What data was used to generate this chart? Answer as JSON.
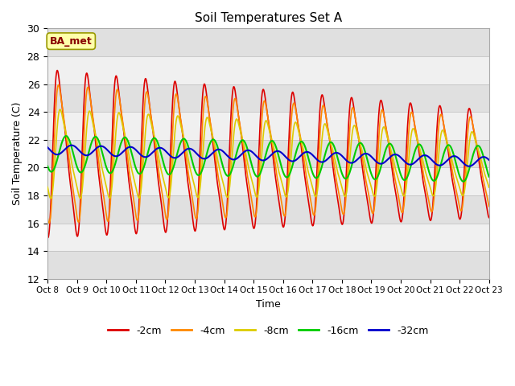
{
  "title": "Soil Temperatures Set A",
  "xlabel": "Time",
  "ylabel": "Soil Temperature (C)",
  "ylim": [
    12,
    30
  ],
  "annotation": "BA_met",
  "line_colors": {
    "-2cm": "#dd0000",
    "-4cm": "#ff8800",
    "-8cm": "#ddcc00",
    "-16cm": "#00cc00",
    "-32cm": "#0000cc"
  },
  "legend_labels": [
    "-2cm",
    "-4cm",
    "-8cm",
    "-16cm",
    "-32cm"
  ],
  "xtick_labels": [
    "Oct 8",
    "Oct 9",
    "Oct 10",
    "Oct 11",
    "Oct 12",
    "Oct 13",
    "Oct 14",
    "Oct 15",
    "Oct 16",
    "Oct 17",
    "Oct 18",
    "Oct 19",
    "Oct 20",
    "Oct 21",
    "Oct 22",
    "Oct 23"
  ],
  "n_days": 15,
  "band_light": "#f0f0f0",
  "band_dark": "#e0e0e0"
}
